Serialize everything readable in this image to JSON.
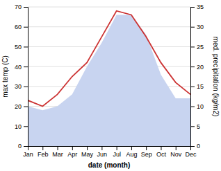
{
  "chart_data": {
    "type": "line",
    "categories": [
      "Jan",
      "Feb",
      "Mar",
      "Apr",
      "May",
      "Jun",
      "Jul",
      "Aug",
      "Sep",
      "Oct",
      "Nov",
      "Dec"
    ],
    "xlabel": "date (month)",
    "ylabel": "max temp (C)",
    "y2label": "med. precipitation (kg/m2)",
    "ylim": [
      0,
      70
    ],
    "yticks": [
      0,
      10,
      20,
      30,
      40,
      50,
      60,
      70
    ],
    "y2lim": [
      0,
      35
    ],
    "y2ticks": [
      0,
      5,
      10,
      15,
      20,
      25,
      30,
      35
    ],
    "grid": true,
    "series": [
      {
        "type": "area",
        "axis": "y2",
        "color": "#c8d4f0",
        "values": [
          10,
          9,
          10,
          13,
          20,
          26,
          33,
          33,
          28,
          18,
          12,
          12
        ]
      },
      {
        "type": "line",
        "color": "#cc3333",
        "values": [
          23,
          20,
          26,
          35,
          42,
          55,
          68,
          66,
          55,
          42,
          32,
          26
        ]
      }
    ]
  }
}
